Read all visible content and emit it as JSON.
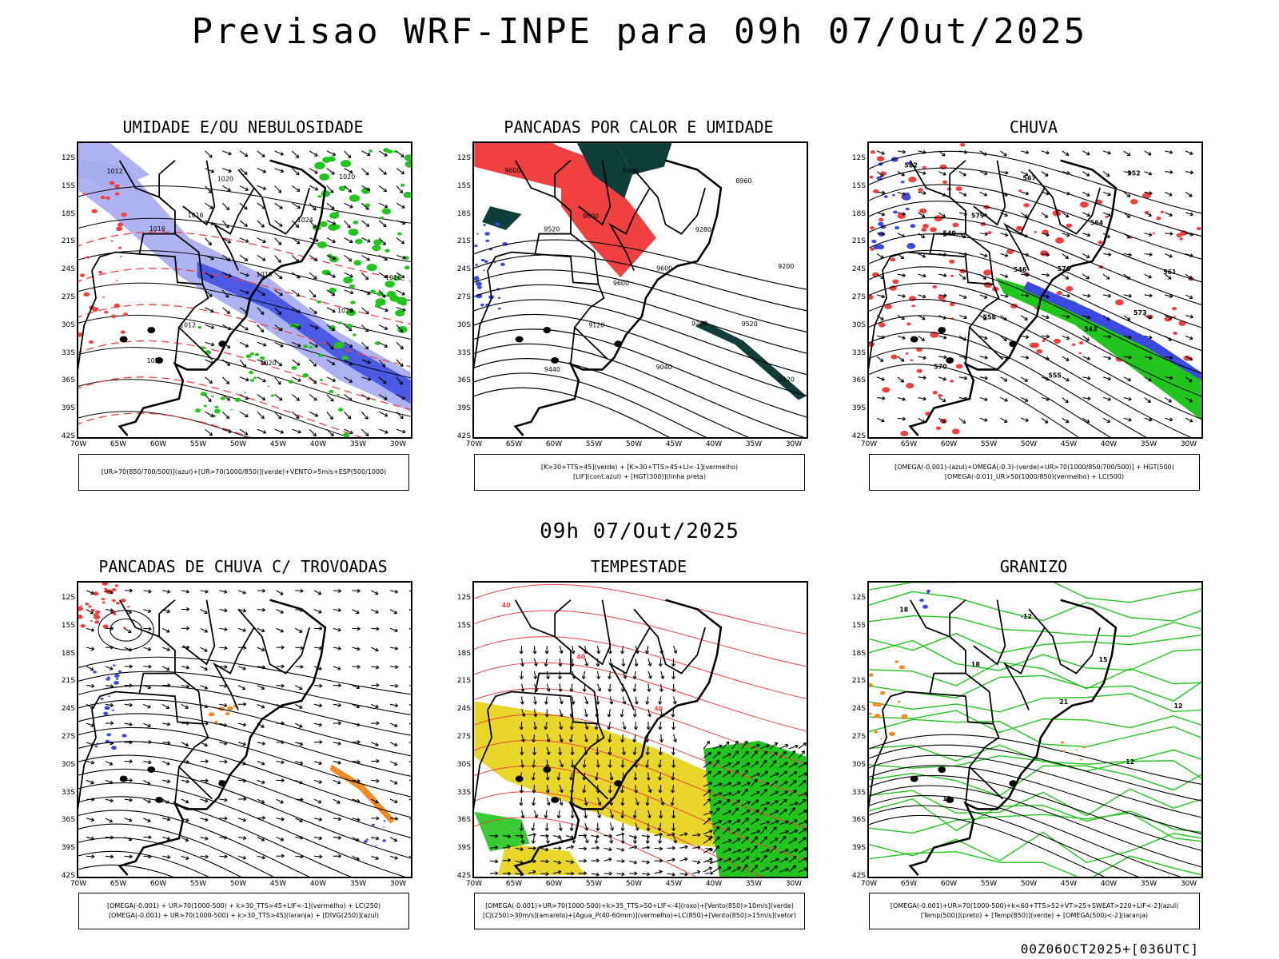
{
  "page": {
    "title": "Previsao WRF-INPE  para 09h 07/Out/2025",
    "subtitle": "09h 07/Out/2025",
    "footer": "00Z06OCT2025+[036UTC]"
  },
  "axes": {
    "lat_labels": [
      "12S",
      "15S",
      "18S",
      "21S",
      "24S",
      "27S",
      "30S",
      "33S",
      "36S",
      "39S",
      "42S"
    ],
    "lon_labels": [
      "70W",
      "65W",
      "60W",
      "55W",
      "50W",
      "45W",
      "40W",
      "35W",
      "30W"
    ]
  },
  "colors": {
    "rain_red": "#f04040",
    "humid_blue": "#3a4ae0",
    "humid_light": "#a6aaf0",
    "green": "#22c51e",
    "dark_teal": "#0e3d3a",
    "yellow": "#e8d62a",
    "orange": "#f08a22",
    "contour_black": "#000000"
  },
  "panels": [
    {
      "title": "UMIDADE E/OU NEBULOSIDADE",
      "legend": [
        "[UR>70(850/700/500)](azul)+[UR>70(1000/850)](verde)+VENTO>5m/s+ESP(500/1000)"
      ],
      "contour_labels": [
        "1012",
        "1016",
        "1016",
        "1020",
        "1024",
        "1020",
        "1024",
        "1016",
        "1012",
        "1020",
        "1020",
        "1016"
      ]
    },
    {
      "title": "PANCADAS POR CALOR E UMIDADE",
      "legend": [
        "[K>30+TTS>45](verde) + [K>30+TTS>45+LI<-1](vermelho)",
        "[LIF](cont.azul) + [HGT(300)](linha preta)"
      ],
      "contour_labels": [
        "9600",
        "9600",
        "9600",
        "9520",
        "9440",
        "9360",
        "9280",
        "9200",
        "9120",
        "9040",
        "8960",
        "9520",
        "9600",
        "9200",
        "9120"
      ]
    },
    {
      "title": "CHUVA",
      "legend": [
        "[OMEGA(-0.001)-(azul)+OMEGA(-0.3)-(verde)+UR>70(1000/850/700/500)] + HGT(500)",
        "[OMEGA(-0.01)_UR>50(1000/850)(vermelho) + LC(500)"
      ],
      "contour_labels": [
        "582",
        "579",
        "576",
        "573",
        "570",
        "567",
        "564",
        "561",
        "558",
        "555",
        "552",
        "549",
        "546",
        "543"
      ]
    },
    {
      "title": "PANCADAS DE CHUVA C/ TROVOADAS",
      "legend": [
        "[OMEGA(-0.001) + UR>70(1000-500) + k>30_TTS>45+LIF<-1](vermelho) + LC(250)",
        "[OMEGA(-0.001) + UR>70(1000-500) + k>30_TTS>45](laranja) + [DIVG(250)](azul)"
      ],
      "contour_labels": []
    },
    {
      "title": "TEMPESTADE",
      "legend": [
        "[OMEGA(-0.001)+UR>70(1000-500)+k>35_TTS>50+LIF<-4](roxo)+[Vento(850)>10m/s](verde)",
        "[CJ(250)>30m/s](amarelo)+[Agua_P(40-60mm)](vermelho)+LC(850)+[Vento(850)>15m/s](vetor)"
      ],
      "contour_labels": [
        "40",
        "40",
        "40"
      ]
    },
    {
      "title": "GRANIZO",
      "legend": [
        "[OMEGA(-0.001)+UR>70(1000-500)+k<60+TTS>52+VT>25+SWEAT>220+LIF<-2](azul)",
        "[Temp(500)](preto) + [Temp(850)](verde) + [OMEGA(500)<-2](laranja)"
      ],
      "contour_labels": [
        "18",
        "18",
        "21",
        "12",
        "12",
        "-12",
        "15",
        "12"
      ]
    }
  ]
}
